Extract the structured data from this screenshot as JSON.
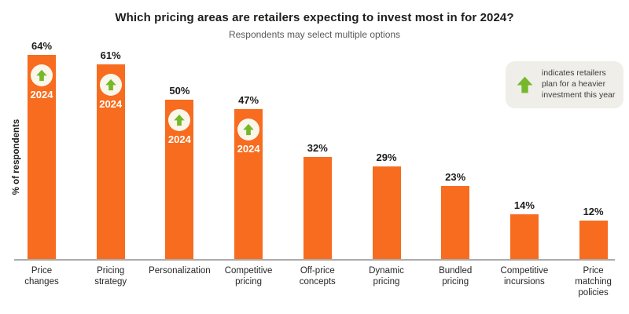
{
  "title": "Which pricing areas are retailers expecting to invest most in for 2024?",
  "subtitle": "Respondents may select multiple options",
  "ylabel": "% of respondents",
  "badge_year": "2024",
  "legend": {
    "icon": "green-up-arrow-icon",
    "text": "indicates retailers plan for a heavier investment this year"
  },
  "colors": {
    "bar": "#F76C1E",
    "arrow_green": "#76B82A",
    "circle_fill": "#FAF6EC",
    "legend_bg": "#EFEEE9",
    "title_text": "#1D1D1B",
    "subtitle_text": "#58585A",
    "axis_line": "#ACACAC"
  },
  "chart_data": {
    "type": "bar",
    "title": "Which pricing areas are retailers expecting to invest most in for 2024?",
    "subtitle": "Respondents may select multiple options",
    "xlabel": "",
    "ylabel": "% of respondents",
    "ylim": [
      0,
      70
    ],
    "grid": false,
    "legend_position": "top-right",
    "categories": [
      "Price\nchanges",
      "Pricing\nstrategy",
      "Personalization",
      "Competitive\npricing",
      "Off-price\nconcepts",
      "Dynamic\npricing",
      "Bundled\npricing",
      "Competitive\nincursions",
      "Price\nmatching\npolicies"
    ],
    "values": [
      64,
      61,
      50,
      47,
      32,
      29,
      23,
      14,
      12
    ],
    "value_labels": [
      "64%",
      "61%",
      "50%",
      "47%",
      "32%",
      "29%",
      "23%",
      "14%",
      "12%"
    ],
    "heavier_investment_2024": [
      true,
      true,
      true,
      true,
      false,
      false,
      false,
      false,
      false
    ]
  }
}
